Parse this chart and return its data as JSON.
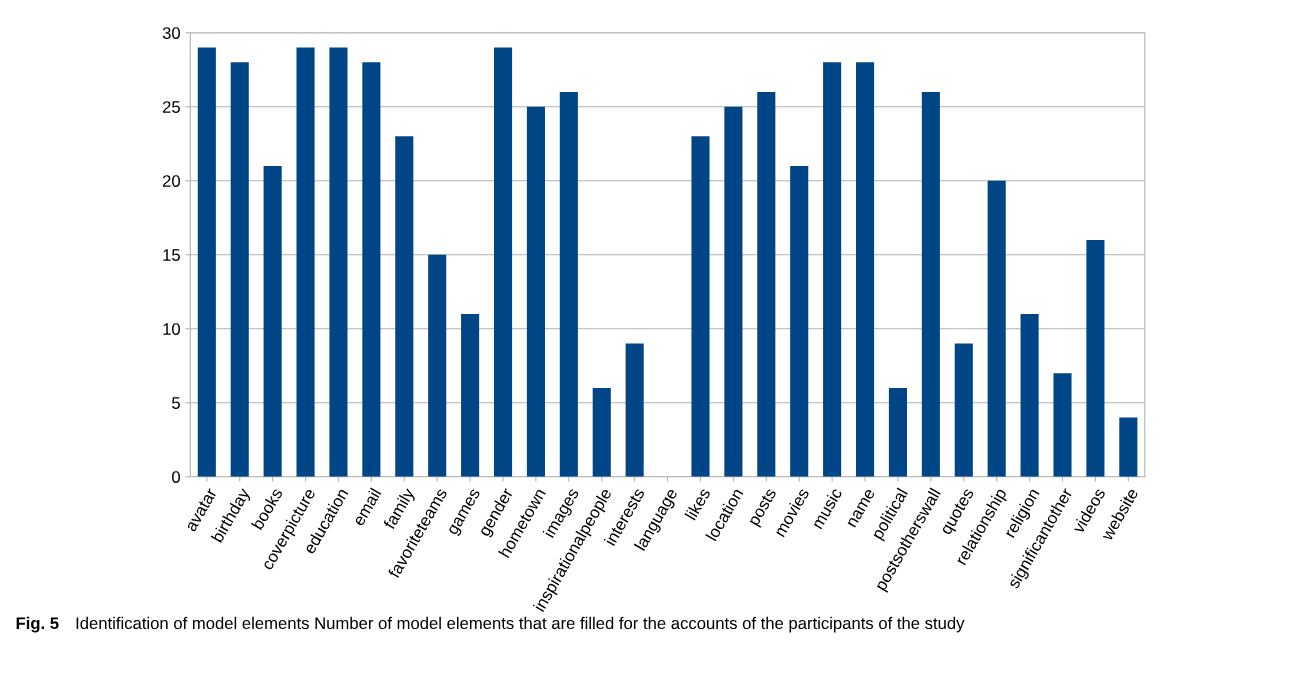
{
  "chart_data": {
    "type": "bar",
    "categories": [
      "avatar",
      "birthday",
      "books",
      "coverpicture",
      "education",
      "email",
      "family",
      "favoriteteams",
      "games",
      "gender",
      "hometown",
      "images",
      "inspirationalpeople",
      "interests",
      "language",
      "likes",
      "location",
      "posts",
      "movies",
      "music",
      "name",
      "political",
      "postsotherswall",
      "quotes",
      "relationship",
      "religion",
      "significantother",
      "videos",
      "website"
    ],
    "values": [
      29,
      28,
      21,
      29,
      29,
      28,
      23,
      15,
      11,
      29,
      25,
      26,
      6,
      9,
      0,
      23,
      25,
      26,
      21,
      28,
      28,
      6,
      26,
      9,
      20,
      11,
      7,
      16,
      4
    ],
    "color": "#004586",
    "ylim": [
      0,
      30
    ],
    "yticks": [
      0,
      5,
      10,
      15,
      20,
      25,
      30
    ],
    "grid": "y",
    "annotations": [
      "Fig. 5",
      "Identification of model elements Number of model elements that are filled for the accounts of the participants of the study"
    ]
  }
}
